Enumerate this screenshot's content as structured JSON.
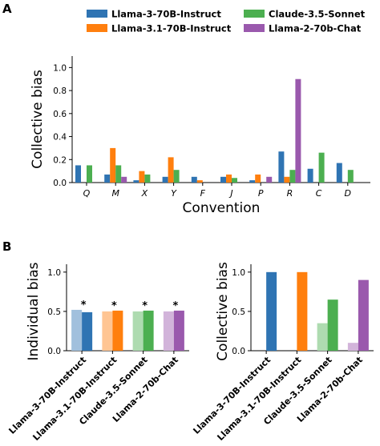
{
  "panels": {
    "a": "A",
    "b": "B"
  },
  "legend": [
    {
      "name": "Llama-3-70B-Instruct",
      "color": "#2f74b3"
    },
    {
      "name": "Llama-3.1-70B-Instruct",
      "color": "#ff7f0e"
    },
    {
      "name": "Claude-3.5-Sonnet",
      "color": "#4caf50"
    },
    {
      "name": "Llama-2-70b-Chat",
      "color": "#9a59ad"
    }
  ],
  "chart_data": [
    {
      "id": "A",
      "type": "bar",
      "xlabel": "Convention",
      "ylabel": "Collective bias",
      "ylim": [
        0,
        1.1
      ],
      "yticks": [
        "0.0",
        "0.2",
        "0.4",
        "0.6",
        "0.8",
        "1.0"
      ],
      "categories": [
        "Q",
        "M",
        "X",
        "Y",
        "F",
        "J",
        "P",
        "R",
        "C",
        "D"
      ],
      "series": [
        {
          "name": "Llama-3-70B-Instruct",
          "color": "#2f74b3",
          "values": [
            0.15,
            0.07,
            0.02,
            0.05,
            0.05,
            0.05,
            0.02,
            0.27,
            0.12,
            0.17
          ]
        },
        {
          "name": "Llama-3.1-70B-Instruct",
          "color": "#ff7f0e",
          "values": [
            0.0,
            0.3,
            0.1,
            0.22,
            0.02,
            0.07,
            0.07,
            0.05,
            0.0,
            0.0
          ]
        },
        {
          "name": "Claude-3.5-Sonnet",
          "color": "#4caf50",
          "values": [
            0.15,
            0.15,
            0.07,
            0.11,
            0.0,
            0.04,
            0.0,
            0.11,
            0.26,
            0.11
          ]
        },
        {
          "name": "Llama-2-70b-Chat",
          "color": "#9a59ad",
          "values": [
            0.0,
            0.05,
            0.0,
            0.0,
            0.0,
            0.0,
            0.05,
            0.9,
            0.0,
            0.0
          ]
        }
      ]
    },
    {
      "id": "B-left",
      "type": "bar",
      "xlabel": "",
      "ylabel": "Individual bias",
      "ylim": [
        0,
        1.1
      ],
      "yticks": [
        "0.0",
        "0.5",
        "1.0"
      ],
      "categories": [
        "Llama-3-70B-Instruct",
        "Llama-3.1-70B-Instruct",
        "Claude-3.5-Sonnet",
        "Llama-2-70b-Chat"
      ],
      "colors": [
        "#2f74b3",
        "#ff7f0e",
        "#4caf50",
        "#9a59ad"
      ],
      "series": [
        {
          "values": [
            0.52,
            0.5,
            0.5,
            0.5
          ]
        },
        {
          "values": [
            0.49,
            0.51,
            0.51,
            0.51
          ]
        }
      ],
      "markers": [
        "*",
        "*",
        "*",
        "*"
      ]
    },
    {
      "id": "B-right",
      "type": "bar",
      "xlabel": "",
      "ylabel": "Collective bias",
      "ylim": [
        0,
        1.1
      ],
      "yticks": [
        "0.0",
        "0.5",
        "1.0"
      ],
      "categories": [
        "Llama-3-70B-Instruct",
        "Llama-3.1-70B-Instruct",
        "Claude-3.5-Sonnet",
        "Llama-2-70b-Chat"
      ],
      "colors": [
        "#2f74b3",
        "#ff7f0e",
        "#4caf50",
        "#9a59ad"
      ],
      "series": [
        {
          "values": [
            0.0,
            0.0,
            0.35,
            0.1
          ]
        },
        {
          "values": [
            1.0,
            1.0,
            0.65,
            0.9
          ]
        }
      ]
    }
  ]
}
